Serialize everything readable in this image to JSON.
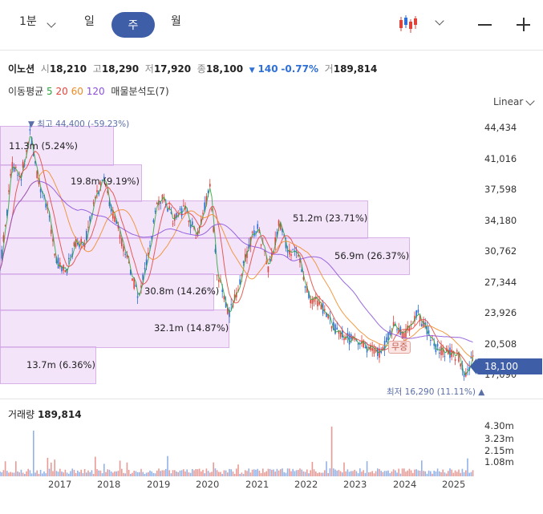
{
  "toolbar": {
    "minute": "1분",
    "day": "일",
    "week": "주",
    "month": "월"
  },
  "stock": {
    "name": "이노션",
    "open_label": "시",
    "open": "18,210",
    "high_label": "고",
    "high": "18,290",
    "low_label": "저",
    "low": "17,920",
    "close_label": "종",
    "close": "18,100",
    "change_arrow": "▼",
    "change": "140",
    "change_pct": "-0.77%",
    "volume_label": "거",
    "volume": "189,814"
  },
  "ma": {
    "label": "이동평균",
    "p5": "5",
    "p20": "20",
    "p60": "60",
    "p120": "120",
    "vp_label": "매물분석도(7)"
  },
  "scale_mode": "Linear",
  "price_axis": [
    "44,434",
    "41,016",
    "37,598",
    "34,180",
    "30,762",
    "27,344",
    "23,926",
    "20,508",
    "17,090"
  ],
  "current_price": "18,100",
  "max_label": "▼ 최고 44,400 (-59.23%)",
  "min_label": "최저 16,290 (11.11%) ▲",
  "event_label": "무증",
  "volume_profile": [
    {
      "label": "11.3m (5.24%)"
    },
    {
      "label": "19.8m (9.19%)"
    },
    {
      "label": "51.2m (23.71%)"
    },
    {
      "label": "56.9m (26.37%)"
    },
    {
      "label": "30.8m (14.26%)"
    },
    {
      "label": "32.1m (14.87%)"
    },
    {
      "label": "13.7m (6.36%)"
    }
  ],
  "volume_panel": {
    "title": "거래량",
    "value": "189,814",
    "axis": [
      "4.30m",
      "3.23m",
      "2.15m",
      "1.08m"
    ]
  },
  "x_axis": [
    "2017",
    "2018",
    "2019",
    "2020",
    "2021",
    "2022",
    "2023",
    "2024",
    "2025"
  ],
  "colors": {
    "up": "#e0433a",
    "down": "#2e6fd8",
    "ma5": "#2aa63a",
    "ma20": "#e0433a",
    "ma60": "#f08a24",
    "ma120": "#8a4fd8",
    "accent": "#3f5ea8"
  }
}
